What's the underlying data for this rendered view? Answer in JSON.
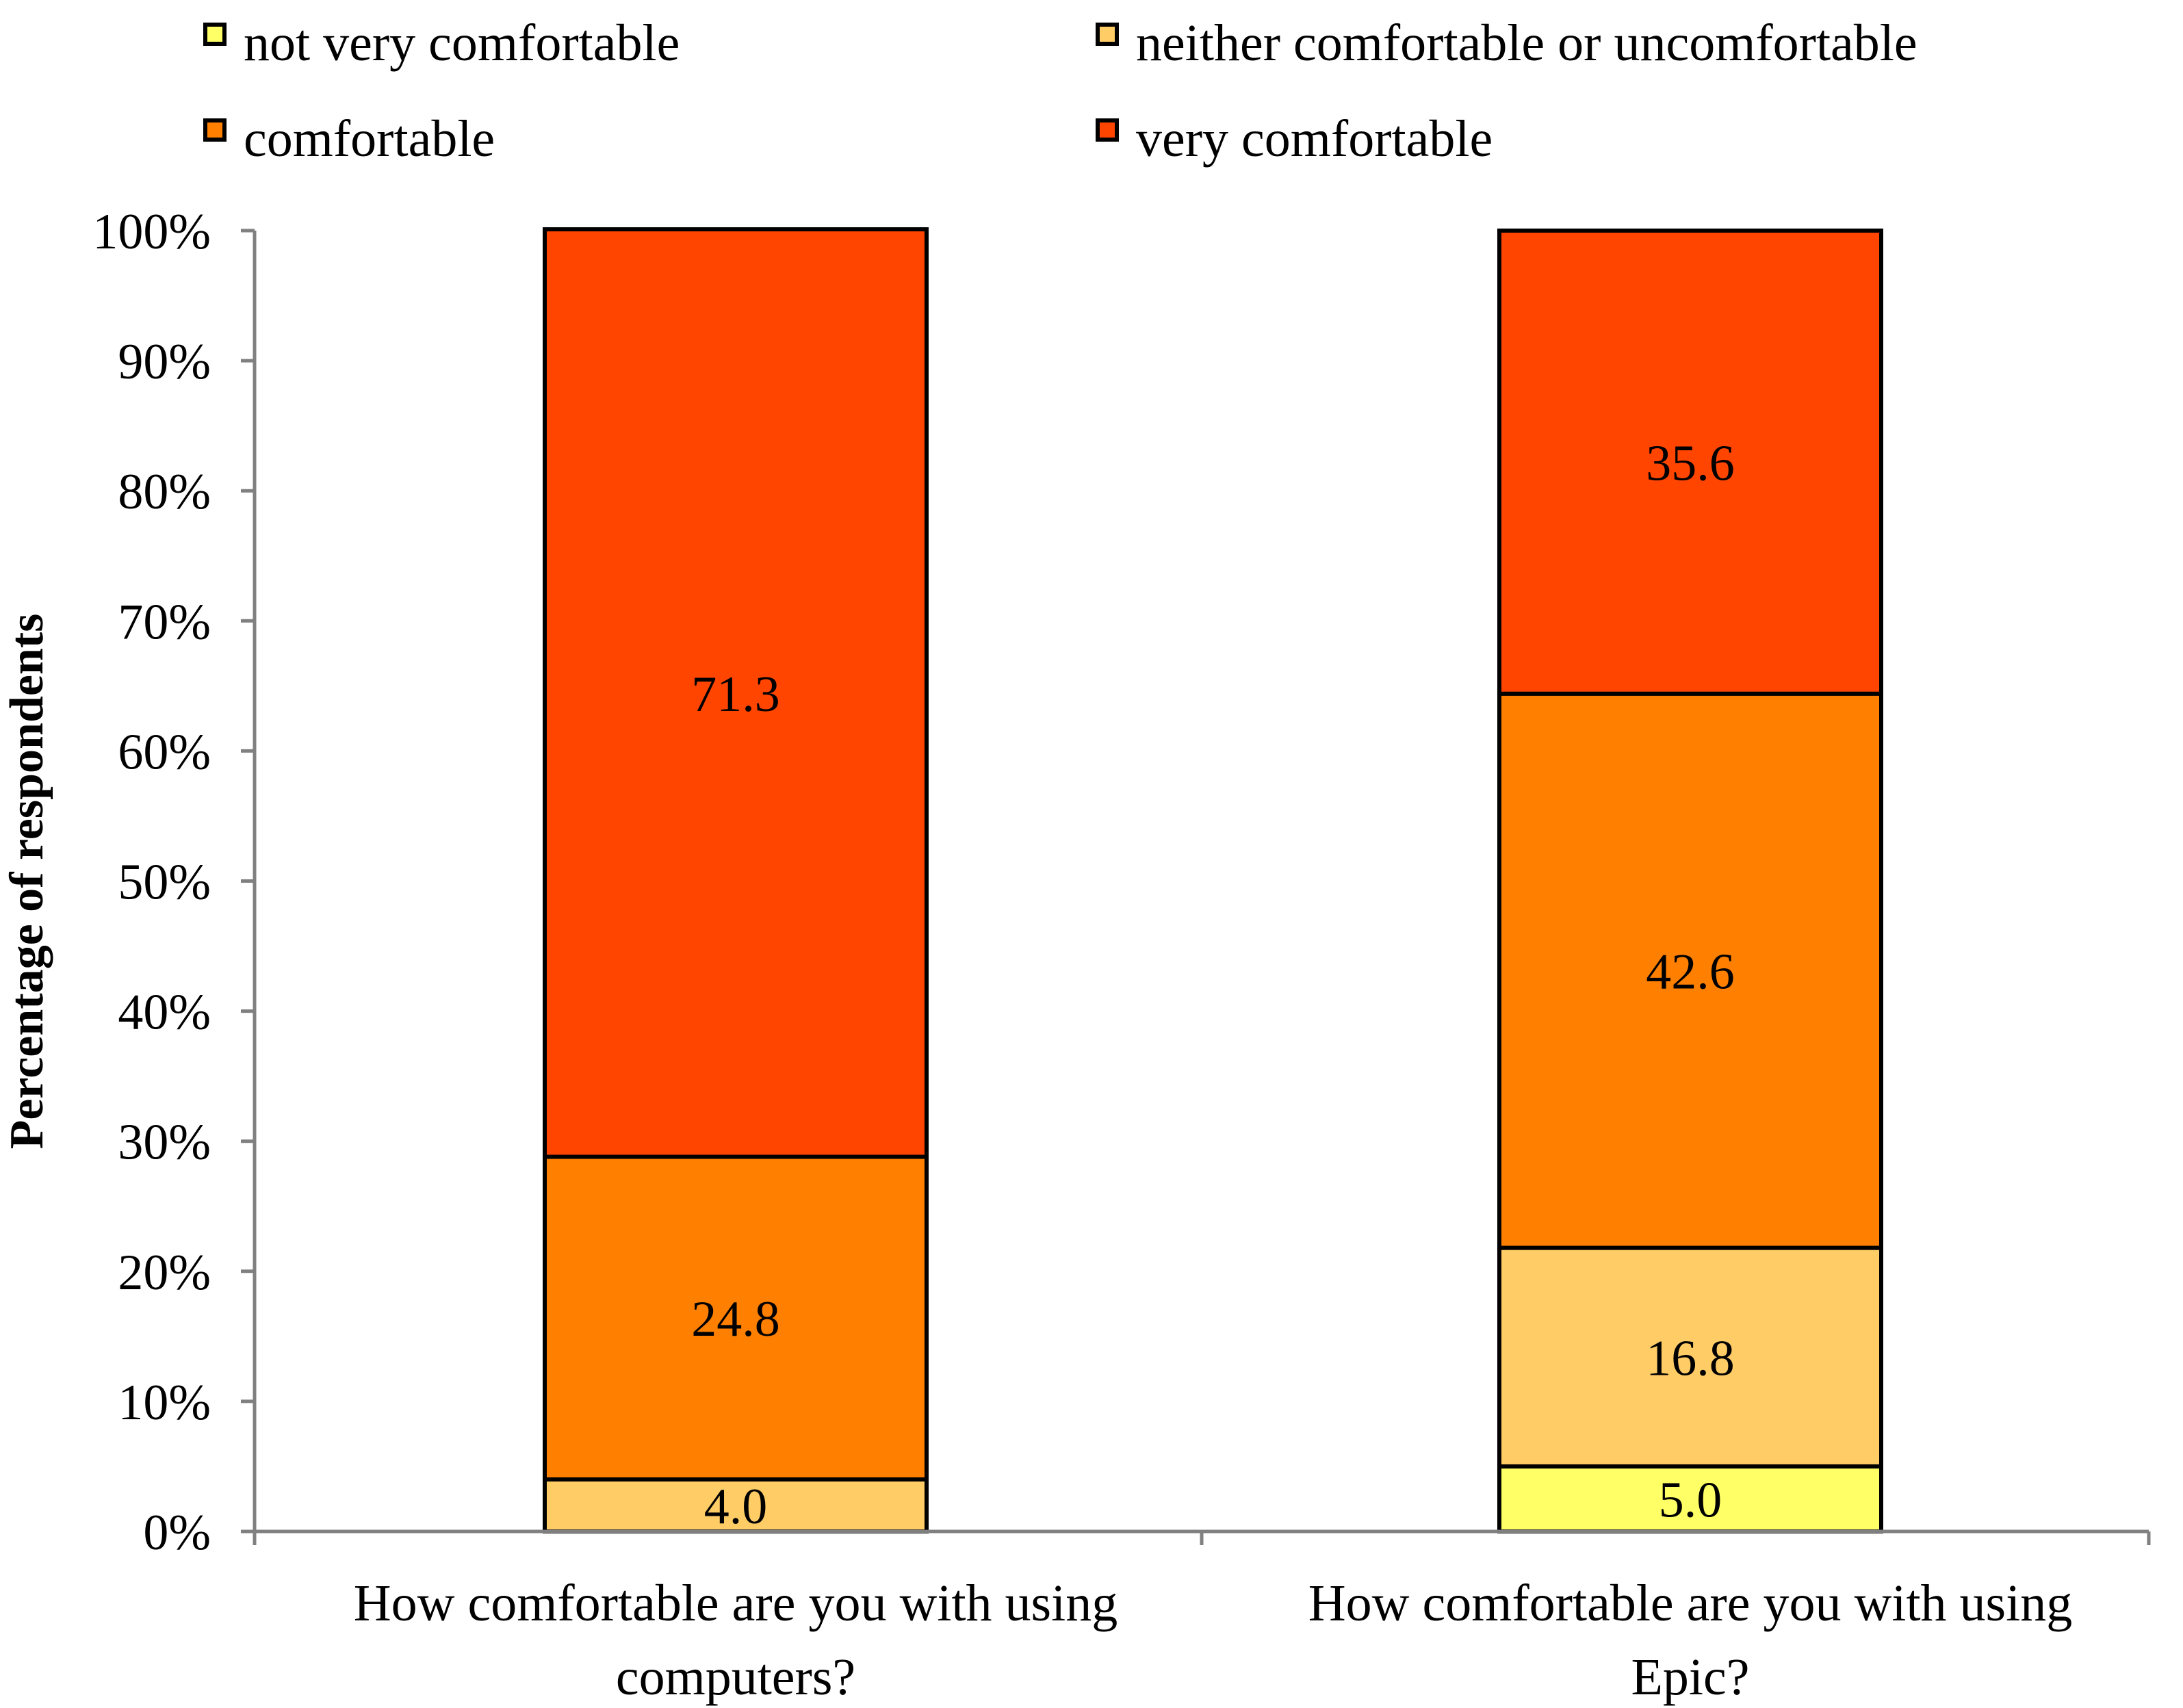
{
  "chart_data": {
    "type": "bar",
    "stacked": true,
    "title": "",
    "xlabel": "",
    "ylabel": "Percentage of respondents",
    "ylim": [
      0,
      100
    ],
    "yticks": [
      "0%",
      "10%",
      "20%",
      "30%",
      "40%",
      "50%",
      "60%",
      "70%",
      "80%",
      "90%",
      "100%"
    ],
    "categories": [
      [
        "How comfortable are you with using",
        "computers?"
      ],
      [
        "How comfortable are you with using",
        "Epic?"
      ]
    ],
    "legend_position": "top",
    "series": [
      {
        "name": "not very comfortable",
        "color": "#FFFF66",
        "values": [
          0,
          5.0
        ],
        "labels": [
          "",
          "5.0"
        ]
      },
      {
        "name": "neither comfortable or uncomfortable",
        "color": "#FFCC66",
        "values": [
          4.0,
          16.8
        ],
        "labels": [
          "4.0",
          "16.8"
        ]
      },
      {
        "name": "comfortable",
        "color": "#FF8000",
        "values": [
          24.8,
          42.6
        ],
        "labels": [
          "24.8",
          "42.6"
        ]
      },
      {
        "name": "very comfortable",
        "color": "#FF4500",
        "values": [
          71.3,
          35.6
        ],
        "labels": [
          "71.3",
          "35.6"
        ]
      }
    ]
  }
}
